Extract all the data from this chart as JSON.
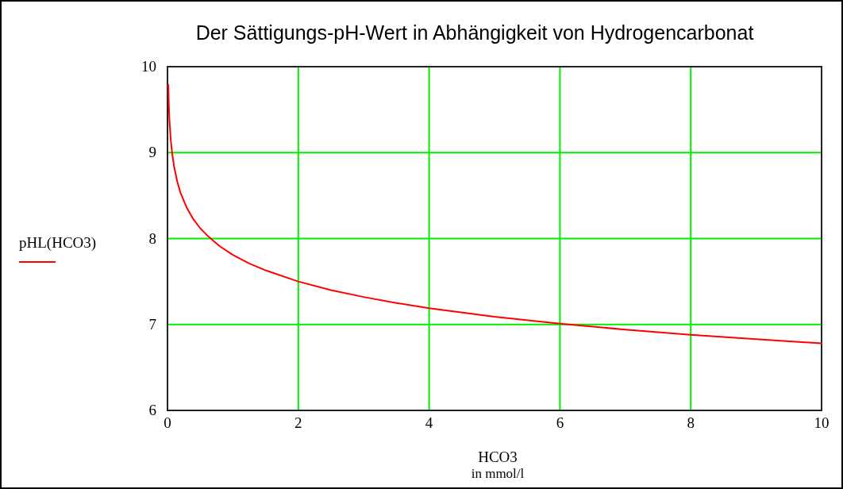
{
  "chart_data": {
    "type": "line",
    "title": "Der Sättigungs-pH-Wert in Abhängigkeit von Hydrogencarbonat",
    "xlabel": "HCO3\nin mmol/l",
    "x": [
      0.012,
      0.02,
      0.03,
      0.05,
      0.07,
      0.1,
      0.15,
      0.2,
      0.3,
      0.4,
      0.5,
      0.63,
      0.8,
      1,
      1.25,
      1.5,
      2,
      2.5,
      3,
      3.5,
      4,
      5,
      6,
      7,
      8,
      9,
      10
    ],
    "series": [
      {
        "name": "pHL(HCO3)",
        "color": "#ff0000",
        "values": [
          9.79,
          9.56,
          9.38,
          9.15,
          9.0,
          8.84,
          8.66,
          8.53,
          8.35,
          8.22,
          8.12,
          8.02,
          7.91,
          7.81,
          7.71,
          7.63,
          7.5,
          7.4,
          7.32,
          7.25,
          7.19,
          7.09,
          7.01,
          6.94,
          6.88,
          6.83,
          6.78
        ]
      }
    ],
    "xlim": [
      0,
      10
    ],
    "ylim": [
      6,
      10
    ],
    "xticks": [
      0,
      2,
      4,
      6,
      8,
      10
    ],
    "yticks": [
      6,
      7,
      8,
      9,
      10
    ],
    "grid": true,
    "legend": "left",
    "line_style": "solid",
    "marker": "none"
  }
}
